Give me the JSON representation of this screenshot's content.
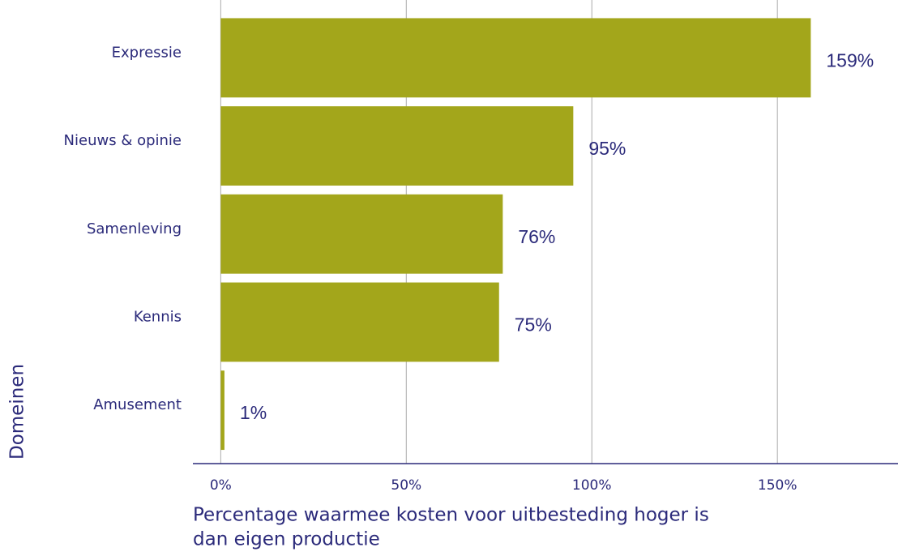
{
  "chart_data": {
    "type": "bar",
    "orientation": "horizontal",
    "categories": [
      "Expressie",
      "Nieuws & opinie",
      "Samenleving",
      "Kennis",
      "Amusement"
    ],
    "values": [
      159,
      95,
      76,
      75,
      1
    ],
    "value_labels": [
      "159%",
      "95%",
      "76%",
      "75%",
      "1%"
    ],
    "color": "#a3a61b",
    "xlim": [
      -7.5,
      182.5
    ],
    "xticks": [
      {
        "value": 0,
        "label": "0%"
      },
      {
        "value": 50,
        "label": "50%"
      },
      {
        "value": 100,
        "label": "100%"
      },
      {
        "value": 150,
        "label": "150%"
      }
    ],
    "grid": true,
    "xlabel": [
      "Percentage waarmee kosten voor uitbesteding hoger is",
      "dan eigen productie"
    ],
    "ylabel": "Domeinen"
  }
}
